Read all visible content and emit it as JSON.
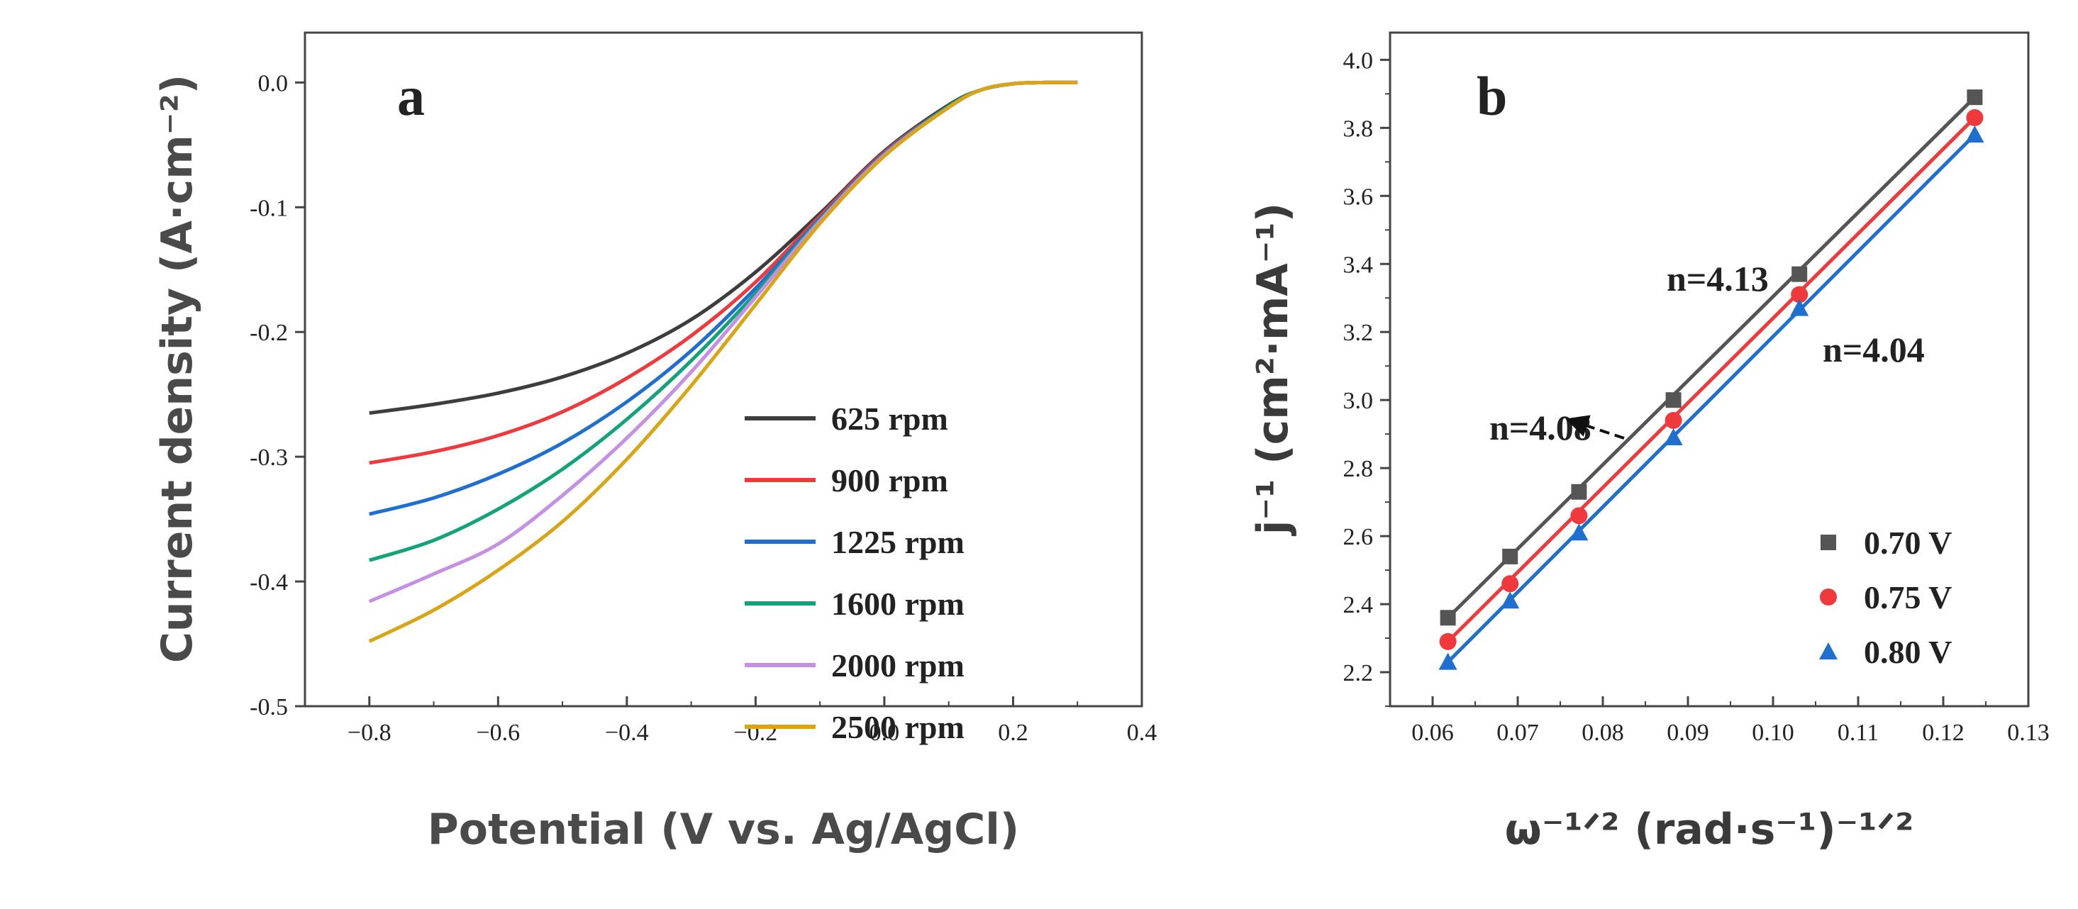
{
  "chart_data": [
    {
      "type": "line",
      "panel": "a",
      "xlabel": "Potential (V vs. Ag/AgCl)",
      "ylabel": "Current density (A·cm⁻²)",
      "xlim": [
        -0.9,
        0.4
      ],
      "ylim": [
        -0.5,
        0.04
      ],
      "xticks": [
        -0.8,
        -0.6,
        -0.4,
        -0.2,
        0.0,
        0.2,
        0.4
      ],
      "xtick_labels": [
        "−0.8",
        "−0.6",
        "−0.4",
        "−0.2",
        "0.0",
        "0.2",
        "0.4"
      ],
      "yticks": [
        0.0,
        -0.1,
        -0.2,
        -0.3,
        -0.4,
        -0.5
      ],
      "ytick_labels": [
        "0.0",
        "-0.1",
        "-0.2",
        "-0.3",
        "-0.4",
        "-0.5"
      ],
      "legend_position": "lower-right",
      "series": [
        {
          "name": "625 rpm",
          "color": "#3d3d3d",
          "x": [
            -0.8,
            -0.7,
            -0.6,
            -0.5,
            -0.4,
            -0.3,
            -0.2,
            -0.1,
            0.0,
            0.1,
            0.15,
            0.2,
            0.25,
            0.3
          ],
          "y": [
            -0.265,
            -0.258,
            -0.249,
            -0.236,
            -0.217,
            -0.19,
            -0.152,
            -0.105,
            -0.055,
            -0.018,
            -0.006,
            -0.001,
            0.0,
            0.0
          ]
        },
        {
          "name": "900 rpm",
          "color": "#f0393c",
          "x": [
            -0.8,
            -0.7,
            -0.6,
            -0.5,
            -0.4,
            -0.3,
            -0.2,
            -0.1,
            0.0,
            0.1,
            0.15,
            0.2,
            0.25,
            0.3
          ],
          "y": [
            -0.305,
            -0.296,
            -0.283,
            -0.264,
            -0.237,
            -0.203,
            -0.16,
            -0.107,
            -0.056,
            -0.019,
            -0.006,
            -0.001,
            0.0,
            0.0
          ]
        },
        {
          "name": "1225 rpm",
          "color": "#1f6fd1",
          "x": [
            -0.8,
            -0.7,
            -0.6,
            -0.5,
            -0.4,
            -0.3,
            -0.2,
            -0.1,
            0.0,
            0.1,
            0.15,
            0.2,
            0.25,
            0.3
          ],
          "y": [
            -0.346,
            -0.333,
            -0.314,
            -0.289,
            -0.256,
            -0.215,
            -0.165,
            -0.109,
            -0.057,
            -0.019,
            -0.006,
            -0.001,
            0.0,
            0.0
          ]
        },
        {
          "name": "1600 rpm",
          "color": "#13a37a",
          "x": [
            -0.8,
            -0.7,
            -0.6,
            -0.5,
            -0.4,
            -0.3,
            -0.2,
            -0.1,
            0.0,
            0.1,
            0.15,
            0.2,
            0.25,
            0.3
          ],
          "y": [
            -0.383,
            -0.367,
            -0.342,
            -0.31,
            -0.27,
            -0.223,
            -0.169,
            -0.11,
            -0.058,
            -0.019,
            -0.006,
            -0.001,
            0.0,
            0.0
          ]
        },
        {
          "name": "2000 rpm",
          "color": "#c58fe6",
          "x": [
            -0.8,
            -0.7,
            -0.6,
            -0.5,
            -0.4,
            -0.3,
            -0.2,
            -0.1,
            0.0,
            0.1,
            0.15,
            0.2,
            0.25,
            0.3
          ],
          "y": [
            -0.416,
            -0.394,
            -0.37,
            -0.331,
            -0.285,
            -0.232,
            -0.172,
            -0.111,
            -0.058,
            -0.02,
            -0.006,
            -0.001,
            0.0,
            0.0
          ]
        },
        {
          "name": "2500 rpm",
          "color": "#d9a514",
          "x": [
            -0.8,
            -0.7,
            -0.6,
            -0.5,
            -0.4,
            -0.3,
            -0.2,
            -0.1,
            0.0,
            0.1,
            0.15,
            0.2,
            0.25,
            0.3
          ],
          "y": [
            -0.448,
            -0.423,
            -0.391,
            -0.352,
            -0.302,
            -0.243,
            -0.178,
            -0.113,
            -0.059,
            -0.02,
            -0.006,
            -0.001,
            0.0,
            0.0
          ]
        }
      ],
      "annotations": [
        {
          "text": "a"
        }
      ]
    },
    {
      "type": "scatter",
      "panel": "b",
      "xlabel": "ω⁻¹ᐟ² (rad·s⁻¹)⁻¹ᐟ²",
      "ylabel": "j⁻¹ (cm²·mA⁻¹)",
      "xlim": [
        0.055,
        0.13
      ],
      "ylim": [
        2.1,
        4.08
      ],
      "xticks": [
        0.06,
        0.07,
        0.08,
        0.09,
        0.1,
        0.11,
        0.12,
        0.13
      ],
      "xtick_labels": [
        "0.06",
        "0.07",
        "0.08",
        "0.09",
        "0.10",
        "0.11",
        "0.12",
        "0.13"
      ],
      "yticks": [
        2.2,
        2.4,
        2.6,
        2.8,
        3.0,
        3.2,
        3.4,
        3.6,
        3.8,
        4.0
      ],
      "ytick_labels": [
        "2.2",
        "2.4",
        "2.6",
        "2.8",
        "3.0",
        "3.2",
        "3.4",
        "3.6",
        "3.8",
        "4.0"
      ],
      "legend_position": "lower-right",
      "x": [
        0.0618,
        0.0691,
        0.0772,
        0.0883,
        0.1031,
        0.1237
      ],
      "series": [
        {
          "name": "0.70 V",
          "color": "#555555",
          "marker": "square",
          "y": [
            2.36,
            2.54,
            2.73,
            3.0,
            3.37,
            3.89
          ],
          "fit": [
            2.36,
            3.89
          ]
        },
        {
          "name": "0.75 V",
          "color": "#f0393c",
          "marker": "circle",
          "y": [
            2.29,
            2.46,
            2.66,
            2.94,
            3.31,
            3.83
          ],
          "fit": [
            2.29,
            3.83
          ]
        },
        {
          "name": "0.80 V",
          "color": "#1f6fd1",
          "marker": "triangle",
          "y": [
            2.23,
            2.41,
            2.61,
            2.89,
            3.27,
            3.78
          ],
          "fit": [
            2.23,
            3.78
          ]
        }
      ],
      "annotations": [
        {
          "text": "b"
        },
        {
          "text": "n=4.13"
        },
        {
          "text": "n=4.08"
        },
        {
          "text": "n=4.04"
        }
      ]
    }
  ]
}
